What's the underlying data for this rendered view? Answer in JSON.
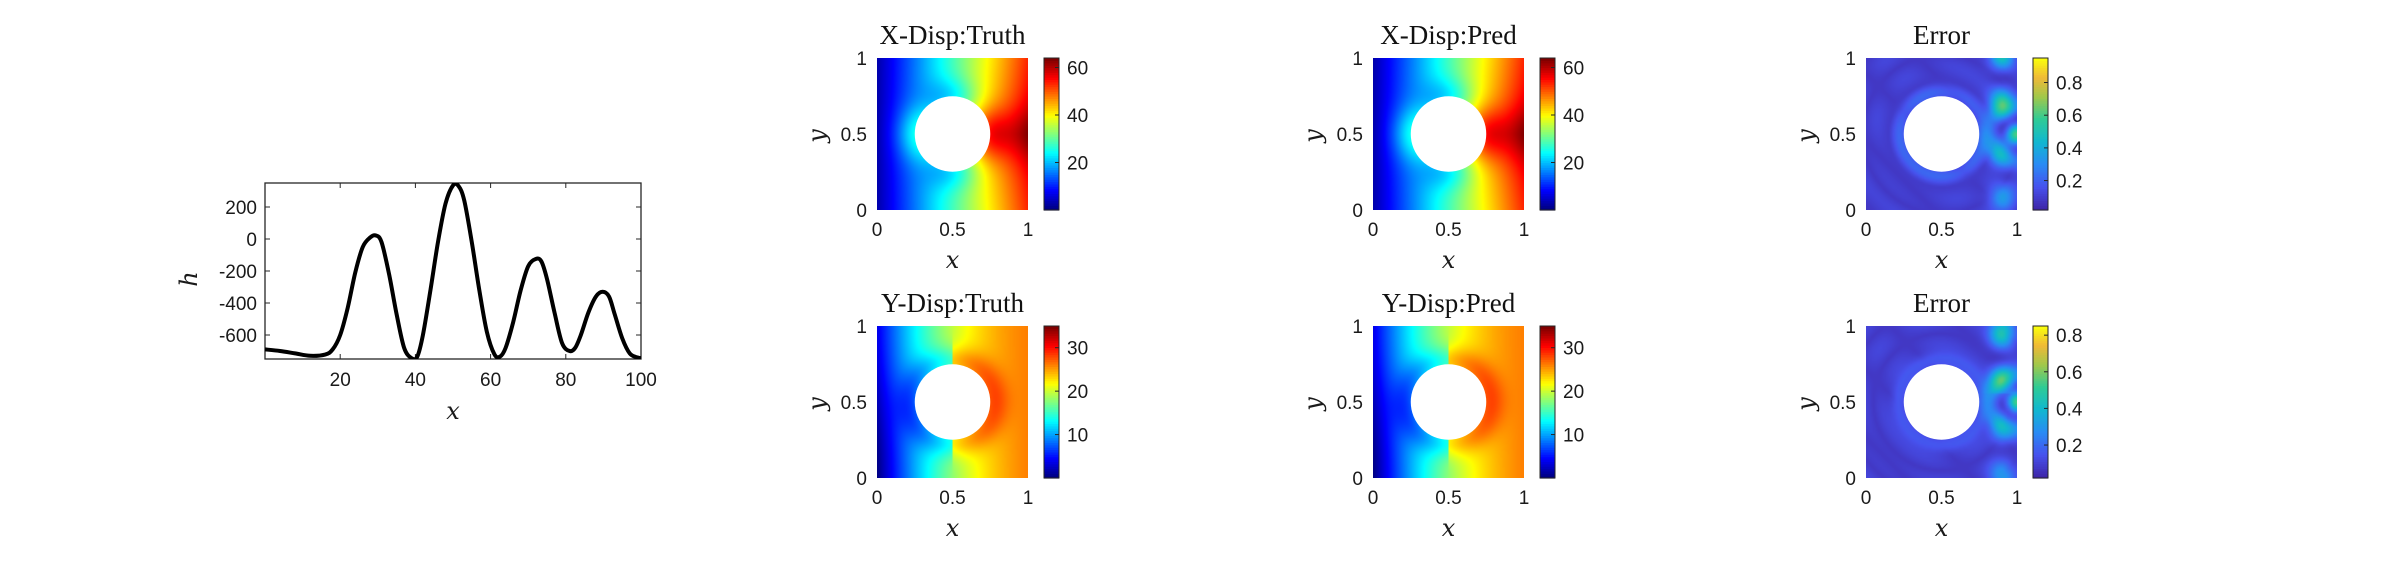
{
  "chart_data": [
    {
      "id": "h-curve",
      "type": "line",
      "title": "",
      "xlabel": "x",
      "ylabel": "h",
      "xlim": [
        0,
        100
      ],
      "ylim": [
        -750,
        350
      ],
      "xticks": [
        20,
        40,
        60,
        80,
        100
      ],
      "yticks": [
        200,
        0,
        -200,
        -400,
        -600
      ],
      "series": [
        {
          "color": "#000000",
          "x": [
            0,
            4,
            8,
            12,
            16,
            18,
            20,
            22,
            24,
            26,
            28,
            29.5,
            31,
            33,
            35,
            37,
            39,
            40.5,
            42,
            44,
            46,
            48,
            50,
            51.5,
            53,
            55,
            57,
            59,
            61,
            62.5,
            64,
            66,
            68,
            70,
            72,
            73.5,
            75,
            77,
            79,
            81,
            82.5,
            84,
            86,
            88,
            89.8,
            91.5,
            93,
            95,
            97,
            99,
            100
          ],
          "y": [
            -690,
            -700,
            -715,
            -730,
            -722,
            -690,
            -600,
            -430,
            -210,
            -50,
            10,
            22,
            -20,
            -220,
            -470,
            -680,
            -745,
            -735,
            -600,
            -320,
            -20,
            220,
            335,
            330,
            240,
            -20,
            -320,
            -580,
            -720,
            -735,
            -680,
            -520,
            -320,
            -170,
            -125,
            -140,
            -250,
            -460,
            -650,
            -700,
            -680,
            -600,
            -460,
            -360,
            -330,
            -360,
            -470,
            -620,
            -715,
            -740,
            -745
          ]
        }
      ]
    },
    {
      "id": "xdisp-truth",
      "type": "heatmap",
      "title": "X-Disp:Truth",
      "xlabel": "x",
      "ylabel": "y",
      "xlim": [
        0,
        1
      ],
      "ylim": [
        0,
        1
      ],
      "xticks": [
        "0",
        "0.5",
        "1"
      ],
      "yticks": [
        "0",
        "0.5",
        "1"
      ],
      "hole": {
        "cx": 0.5,
        "cy": 0.5,
        "r": 0.25
      },
      "colormap": "jet",
      "clim": [
        0,
        64
      ],
      "cbar_ticks": [
        20,
        40,
        60
      ]
    },
    {
      "id": "xdisp-pred",
      "type": "heatmap",
      "title": "X-Disp:Pred",
      "xlabel": "x",
      "ylabel": "y",
      "xlim": [
        0,
        1
      ],
      "ylim": [
        0,
        1
      ],
      "xticks": [
        "0",
        "0.5",
        "1"
      ],
      "yticks": [
        "0",
        "0.5",
        "1"
      ],
      "hole": {
        "cx": 0.5,
        "cy": 0.5,
        "r": 0.25
      },
      "colormap": "jet",
      "clim": [
        0,
        64
      ],
      "cbar_ticks": [
        20,
        40,
        60
      ]
    },
    {
      "id": "xdisp-error",
      "type": "heatmap",
      "title": "Error",
      "xlabel": "x",
      "ylabel": "y",
      "xlim": [
        0,
        1
      ],
      "ylim": [
        0,
        1
      ],
      "xticks": [
        "0",
        "0.5",
        "1"
      ],
      "yticks": [
        "0",
        "0.5",
        "1"
      ],
      "hole": {
        "cx": 0.5,
        "cy": 0.5,
        "r": 0.25
      },
      "colormap": "parula",
      "clim": [
        0.02,
        0.95
      ],
      "cbar_ticks": [
        0.2,
        0.4,
        0.6,
        0.8
      ]
    },
    {
      "id": "ydisp-truth",
      "type": "heatmap",
      "title": "Y-Disp:Truth",
      "xlabel": "x",
      "ylabel": "y",
      "xlim": [
        0,
        1
      ],
      "ylim": [
        0,
        1
      ],
      "xticks": [
        "0",
        "0.5",
        "1"
      ],
      "yticks": [
        "0",
        "0.5",
        "1"
      ],
      "hole": {
        "cx": 0.5,
        "cy": 0.5,
        "r": 0.25
      },
      "colormap": "jet",
      "clim": [
        0,
        35
      ],
      "cbar_ticks": [
        10,
        20,
        30
      ]
    },
    {
      "id": "ydisp-pred",
      "type": "heatmap",
      "title": "Y-Disp:Pred",
      "xlabel": "x",
      "ylabel": "y",
      "xlim": [
        0,
        1
      ],
      "ylim": [
        0,
        1
      ],
      "xticks": [
        "0",
        "0.5",
        "1"
      ],
      "yticks": [
        "0",
        "0.5",
        "1"
      ],
      "hole": {
        "cx": 0.5,
        "cy": 0.5,
        "r": 0.25
      },
      "colormap": "jet",
      "clim": [
        0,
        35
      ],
      "cbar_ticks": [
        10,
        20,
        30
      ]
    },
    {
      "id": "ydisp-error",
      "type": "heatmap",
      "title": "Error",
      "xlabel": "x",
      "ylabel": "y",
      "xlim": [
        0,
        1
      ],
      "ylim": [
        0,
        1
      ],
      "xticks": [
        "0",
        "0.5",
        "1"
      ],
      "yticks": [
        "0",
        "0.5",
        "1"
      ],
      "hole": {
        "cx": 0.5,
        "cy": 0.5,
        "r": 0.25
      },
      "colormap": "parula",
      "clim": [
        0.02,
        0.85
      ],
      "cbar_ticks": [
        0.2,
        0.4,
        0.6,
        0.8
      ]
    }
  ]
}
